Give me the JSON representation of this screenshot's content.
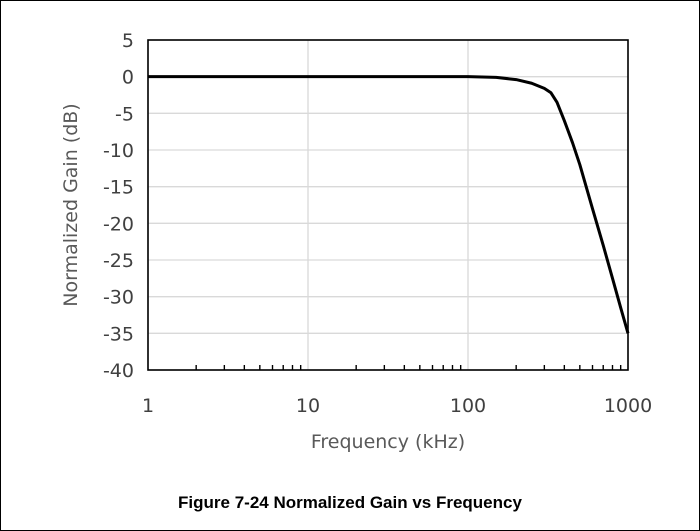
{
  "caption": "Figure 7-24 Normalized Gain vs Frequency",
  "chart_data": {
    "type": "line",
    "xlabel": "Frequency (kHz)",
    "ylabel": "Normalized Gain (dB)",
    "xscale": "log",
    "xlim": [
      1,
      1000
    ],
    "ylim": [
      -40,
      5
    ],
    "xticks": [
      1,
      10,
      100,
      1000
    ],
    "yticks": [
      5,
      0,
      -5,
      -10,
      -15,
      -20,
      -25,
      -30,
      -35,
      -40
    ],
    "grid": true,
    "legend": "none",
    "line_color": "#000000",
    "series": [
      {
        "x": [
          1,
          10,
          50,
          100,
          150,
          200,
          250,
          300,
          330,
          360,
          400,
          450,
          500,
          600,
          700,
          800,
          900,
          1000
        ],
        "values": [
          0,
          0,
          0,
          0,
          -0.1,
          -0.4,
          -0.9,
          -1.6,
          -2.2,
          -3.5,
          -6,
          -9,
          -12,
          -18,
          -23,
          -27.5,
          -31.5,
          -35
        ]
      }
    ]
  }
}
